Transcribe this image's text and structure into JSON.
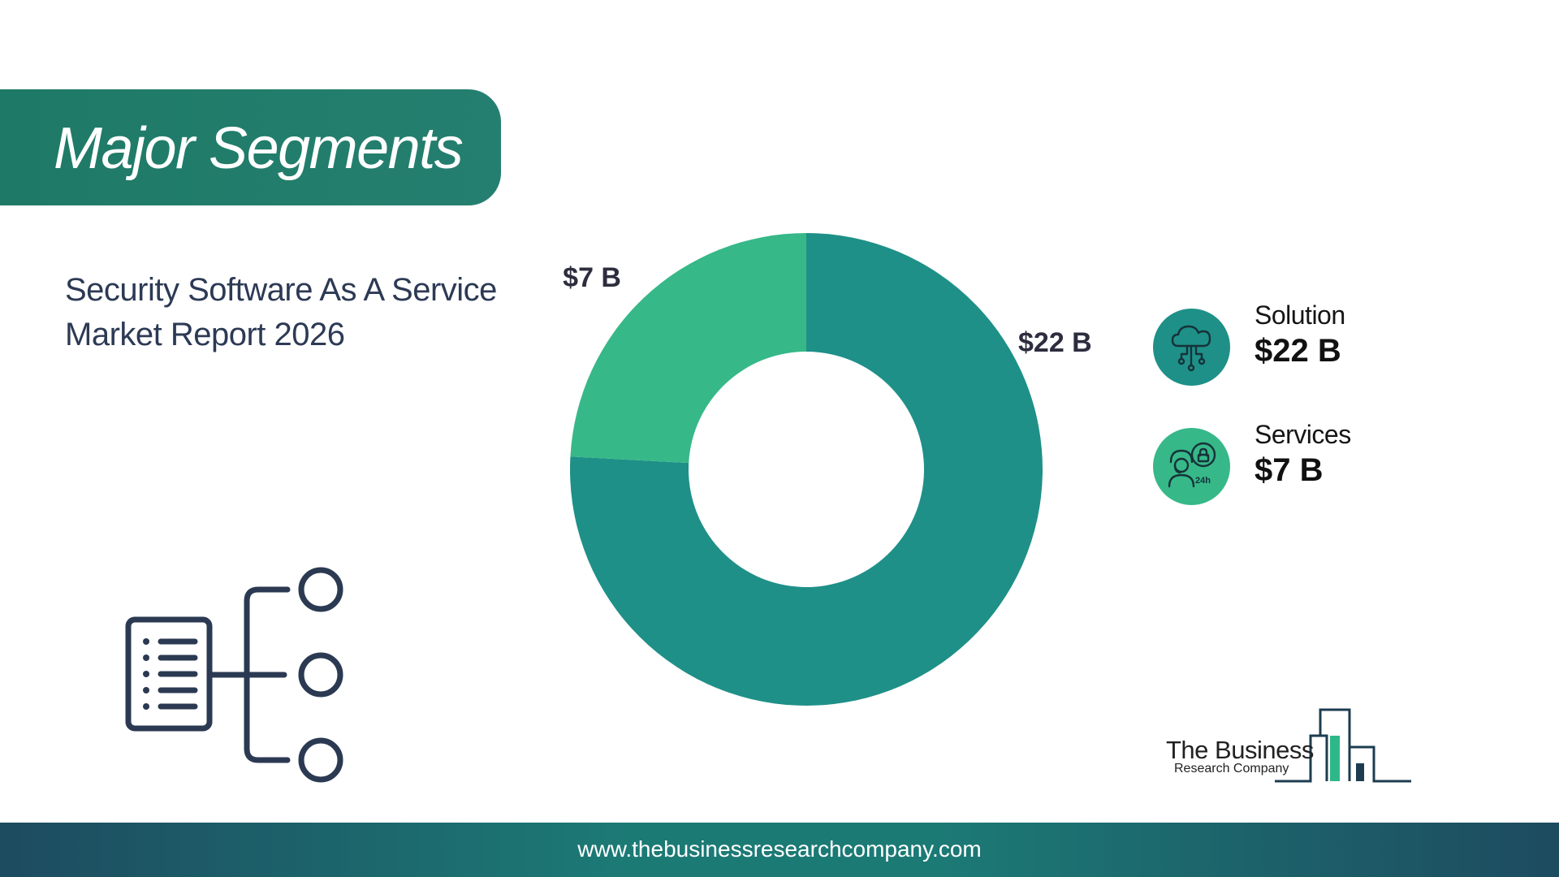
{
  "header": {
    "title": "Major Segments"
  },
  "report": {
    "line1": "Security Software As A Service",
    "line2": "Market Report 2026"
  },
  "chart_data": {
    "type": "pie",
    "donut": true,
    "categories": [
      "Solution",
      "Services"
    ],
    "values": [
      22,
      7
    ],
    "data_labels": [
      "$22 B",
      "$7 B"
    ],
    "colors": [
      "#1e9088",
      "#37b888"
    ]
  },
  "legend": {
    "items": [
      {
        "name": "Solution",
        "value": "$22 B",
        "color": "#1e9088",
        "icon": "cloud-network-icon"
      },
      {
        "name": "Services",
        "value": "$7 B",
        "color": "#37b888",
        "icon": "support-agent-icon"
      }
    ]
  },
  "logo": {
    "line1": "The Business",
    "line2": "Research Company"
  },
  "footer": {
    "url": "www.thebusinessresearchcompany.com"
  }
}
